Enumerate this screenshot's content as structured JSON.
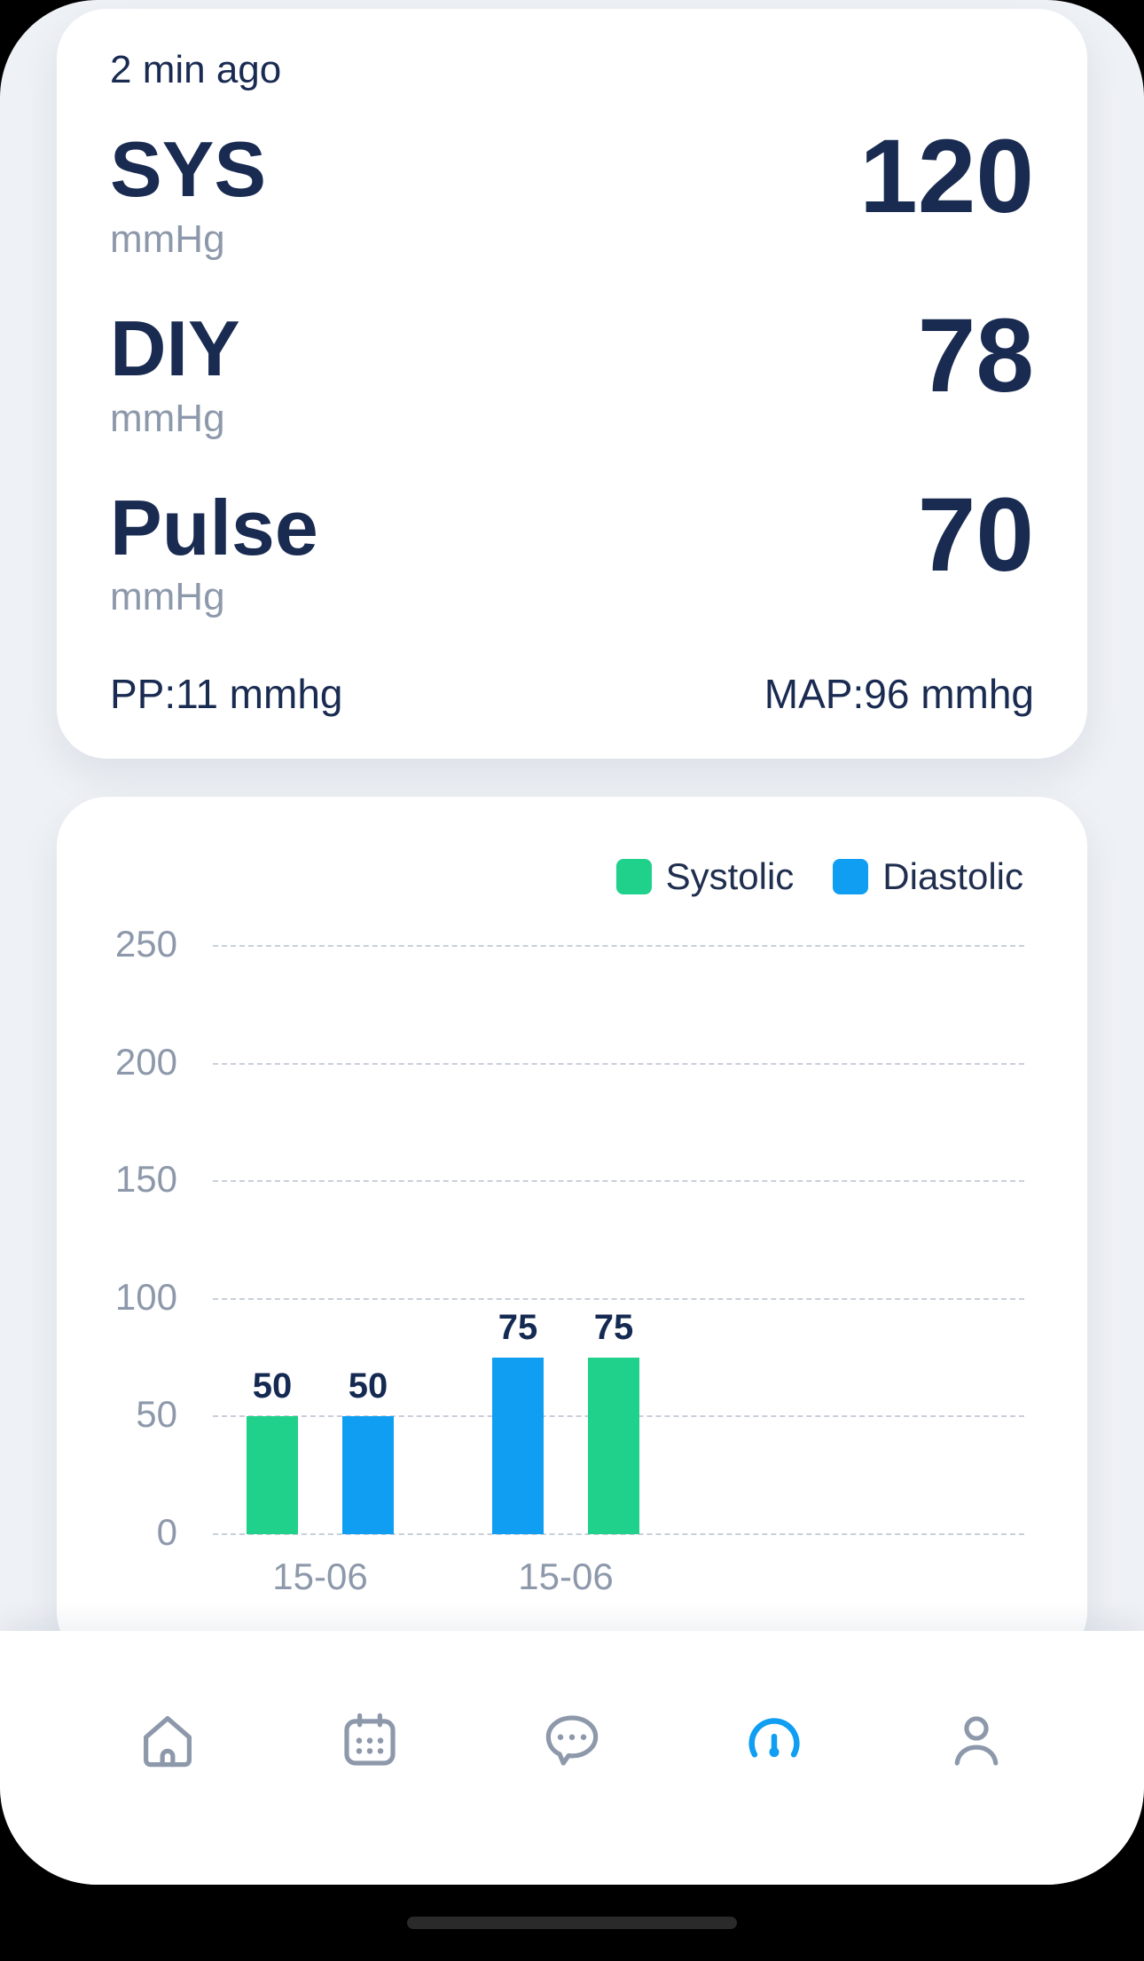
{
  "reading": {
    "timestamp": "2 min ago",
    "metrics": [
      {
        "label": "SYS",
        "unit": "mmHg",
        "value": "120"
      },
      {
        "label": "DIY",
        "unit": "mmHg",
        "value": "78"
      },
      {
        "label": "Pulse",
        "unit": "mmHg",
        "value": "70"
      }
    ],
    "pulse_pressure": "PP:11 mmhg",
    "mean_arterial_pressure": "MAP:96 mmhg"
  },
  "chart_data": {
    "type": "bar",
    "legend": [
      "Systolic",
      "Diastolic"
    ],
    "legend_position": "top-right",
    "series_colors": {
      "Systolic": "#1fd18a",
      "Diastolic": "#0f9ef2"
    },
    "y_ticks": [
      250,
      200,
      150,
      100,
      50,
      0
    ],
    "ylim": [
      0,
      250
    ],
    "grid": "dashed-horizontal",
    "groups": [
      {
        "category": "15-06",
        "bars": [
          {
            "series": "Systolic",
            "value": 50
          },
          {
            "series": "Diastolic",
            "value": 50
          }
        ]
      },
      {
        "category": "15-06",
        "bars": [
          {
            "series": "Diastolic",
            "value": 75
          },
          {
            "series": "Systolic",
            "value": 75
          }
        ]
      }
    ]
  },
  "bottom_nav": {
    "active": "gauge",
    "active_color": "#0f9ef2",
    "inactive_color": "#8d99ab",
    "items": [
      {
        "icon": "home"
      },
      {
        "icon": "calendar"
      },
      {
        "icon": "chat"
      },
      {
        "icon": "gauge"
      },
      {
        "icon": "profile"
      }
    ]
  },
  "colors": {
    "text_primary": "#1a2b52",
    "text_muted": "#8d99ab",
    "card_bg": "#ffffff",
    "screen_bg": "#eef1f5"
  }
}
